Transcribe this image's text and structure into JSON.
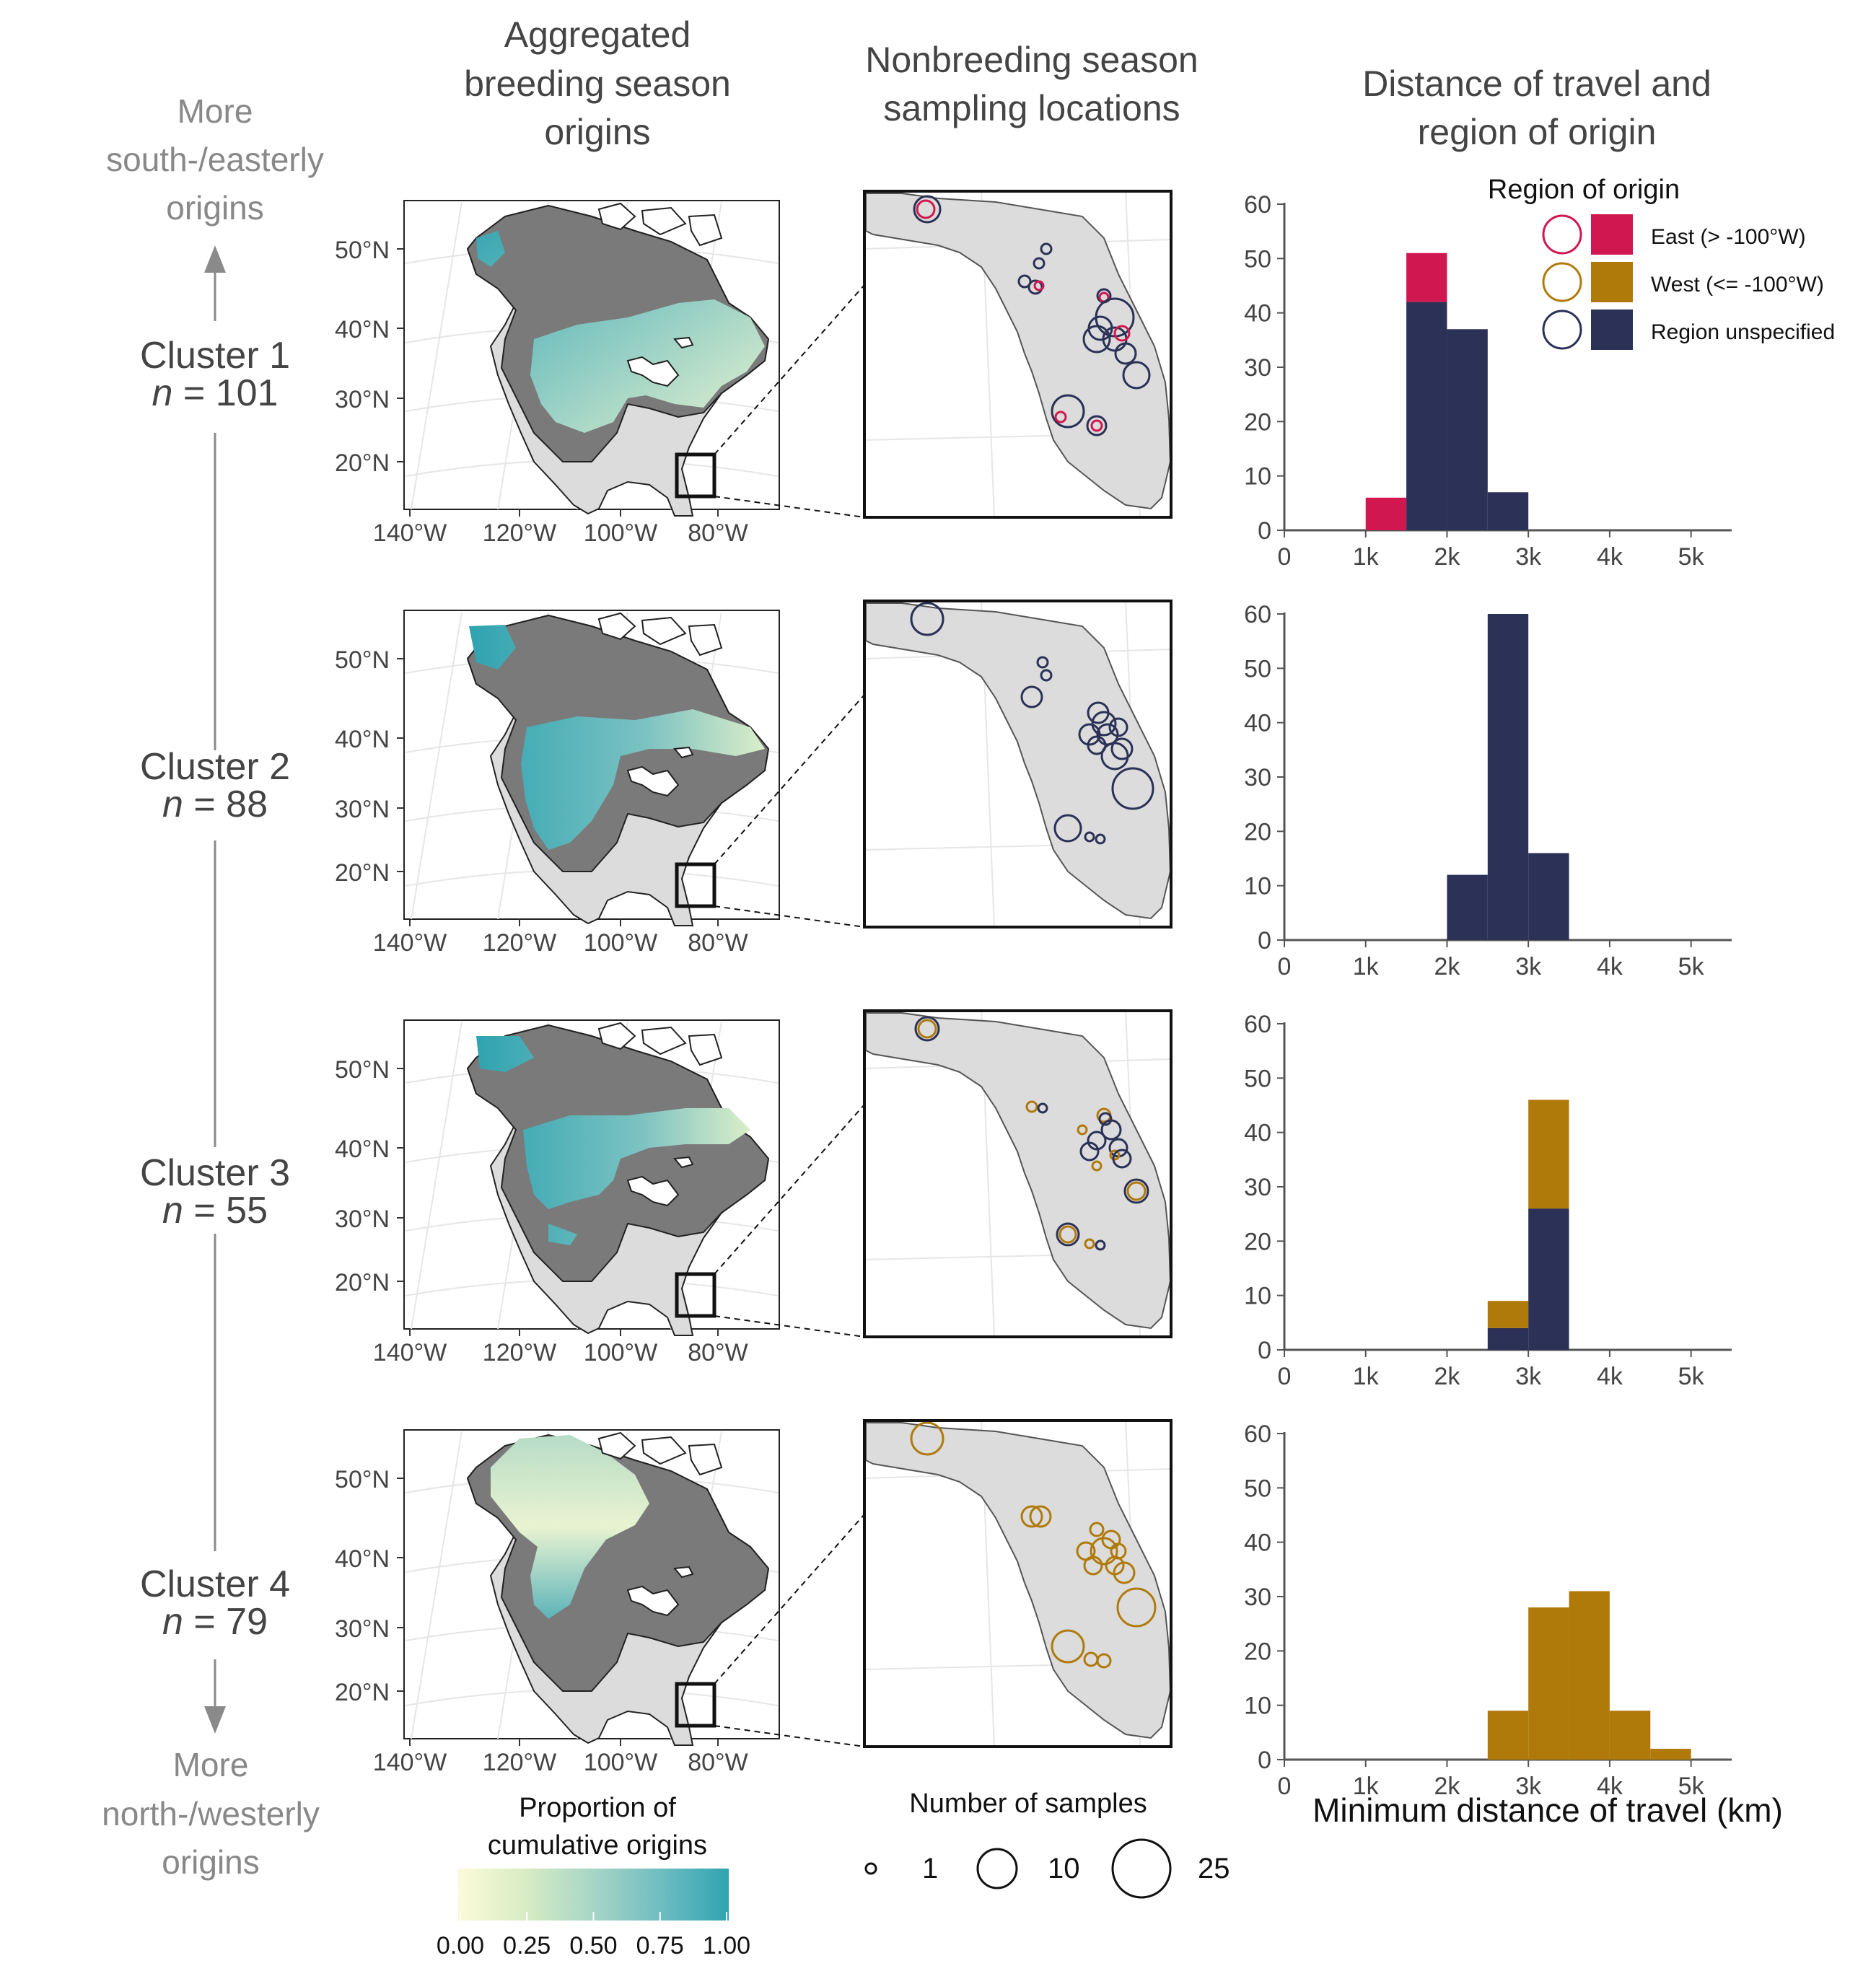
{
  "titles": {
    "col1": [
      "Aggregated",
      "breeding season",
      "origins"
    ],
    "col2": [
      "Nonbreeding season",
      "sampling locations"
    ],
    "col3": [
      "Distance of travel and",
      "region of origin"
    ]
  },
  "side": {
    "top": [
      "More",
      "south-/easterly",
      "origins"
    ],
    "bottom": [
      "More",
      "north-/westerly",
      "origins"
    ]
  },
  "n_prefix": "n",
  "clusters": [
    {
      "label": "Cluster 1",
      "n_text": " = 101"
    },
    {
      "label": "Cluster 2",
      "n_text": " = 88"
    },
    {
      "label": "Cluster 3",
      "n_text": " = 55"
    },
    {
      "label": "Cluster 4",
      "n_text": " = 79"
    }
  ],
  "map_axes": {
    "lat_labels": [
      "50°N",
      "40°N",
      "30°N",
      "20°N"
    ],
    "lon_labels": [
      "140°W",
      "120°W",
      "100°W",
      "80°W"
    ]
  },
  "colorbar": {
    "title": [
      "Proportion of",
      "cumulative origins"
    ],
    "ticks": [
      "0.00",
      "0.25",
      "0.50",
      "0.75",
      "1.00"
    ],
    "colors": [
      "#fbfbd9",
      "#d7ecc4",
      "#a7d5c6",
      "#6fbdc1",
      "#2fa3b0"
    ]
  },
  "size_legend": {
    "title": "Number of samples",
    "values": [
      "1",
      "10",
      "25"
    ]
  },
  "legend": {
    "title": "Region of origin",
    "items": [
      {
        "label": "East (> -100°W)",
        "color": "#d1174f"
      },
      {
        "label": "West (<= -100°W)",
        "color": "#b07a0b"
      },
      {
        "label": "Region unspecified",
        "color": "#2b3157"
      }
    ]
  },
  "colors": {
    "east": "#d1174f",
    "west": "#b07a0b",
    "unspecified": "#2b3157",
    "grey_range": "#7a7a7a",
    "land": "#dcdcdc"
  },
  "chart_data": {
    "type": "bar",
    "xlabel": "Minimum distance of travel (km)",
    "xlim": [
      0,
      5500
    ],
    "ylim": [
      0,
      60
    ],
    "x_ticks": [
      0,
      1000,
      2000,
      3000,
      4000,
      5000
    ],
    "x_tick_labels": [
      "0",
      "1k",
      "2k",
      "3k",
      "4k",
      "5k"
    ],
    "y_ticks": [
      0,
      10,
      20,
      30,
      40,
      50,
      60
    ],
    "bin_width": 500,
    "bins": [
      1000,
      1500,
      2000,
      2500,
      3000,
      3500,
      4000,
      4500
    ],
    "panels": [
      {
        "cluster": "Cluster 1",
        "series": [
          {
            "name": "Region unspecified",
            "values": [
              0,
              42,
              37,
              7,
              0,
              0,
              0,
              0
            ]
          },
          {
            "name": "East (> -100°W)",
            "values": [
              6,
              9,
              0,
              0,
              0,
              0,
              0,
              0
            ]
          }
        ]
      },
      {
        "cluster": "Cluster 2",
        "series": [
          {
            "name": "Region unspecified",
            "values": [
              0,
              0,
              12,
              60,
              16,
              0,
              0,
              0
            ]
          }
        ]
      },
      {
        "cluster": "Cluster 3",
        "series": [
          {
            "name": "Region unspecified",
            "values": [
              0,
              0,
              0,
              4,
              26,
              0,
              0,
              0
            ]
          },
          {
            "name": "West (<= -100°W)",
            "values": [
              0,
              0,
              0,
              5,
              20,
              0,
              0,
              0
            ]
          }
        ]
      },
      {
        "cluster": "Cluster 4",
        "series": [
          {
            "name": "West (<= -100°W)",
            "values": [
              0,
              0,
              0,
              9,
              28,
              31,
              9,
              2
            ]
          }
        ]
      }
    ]
  }
}
